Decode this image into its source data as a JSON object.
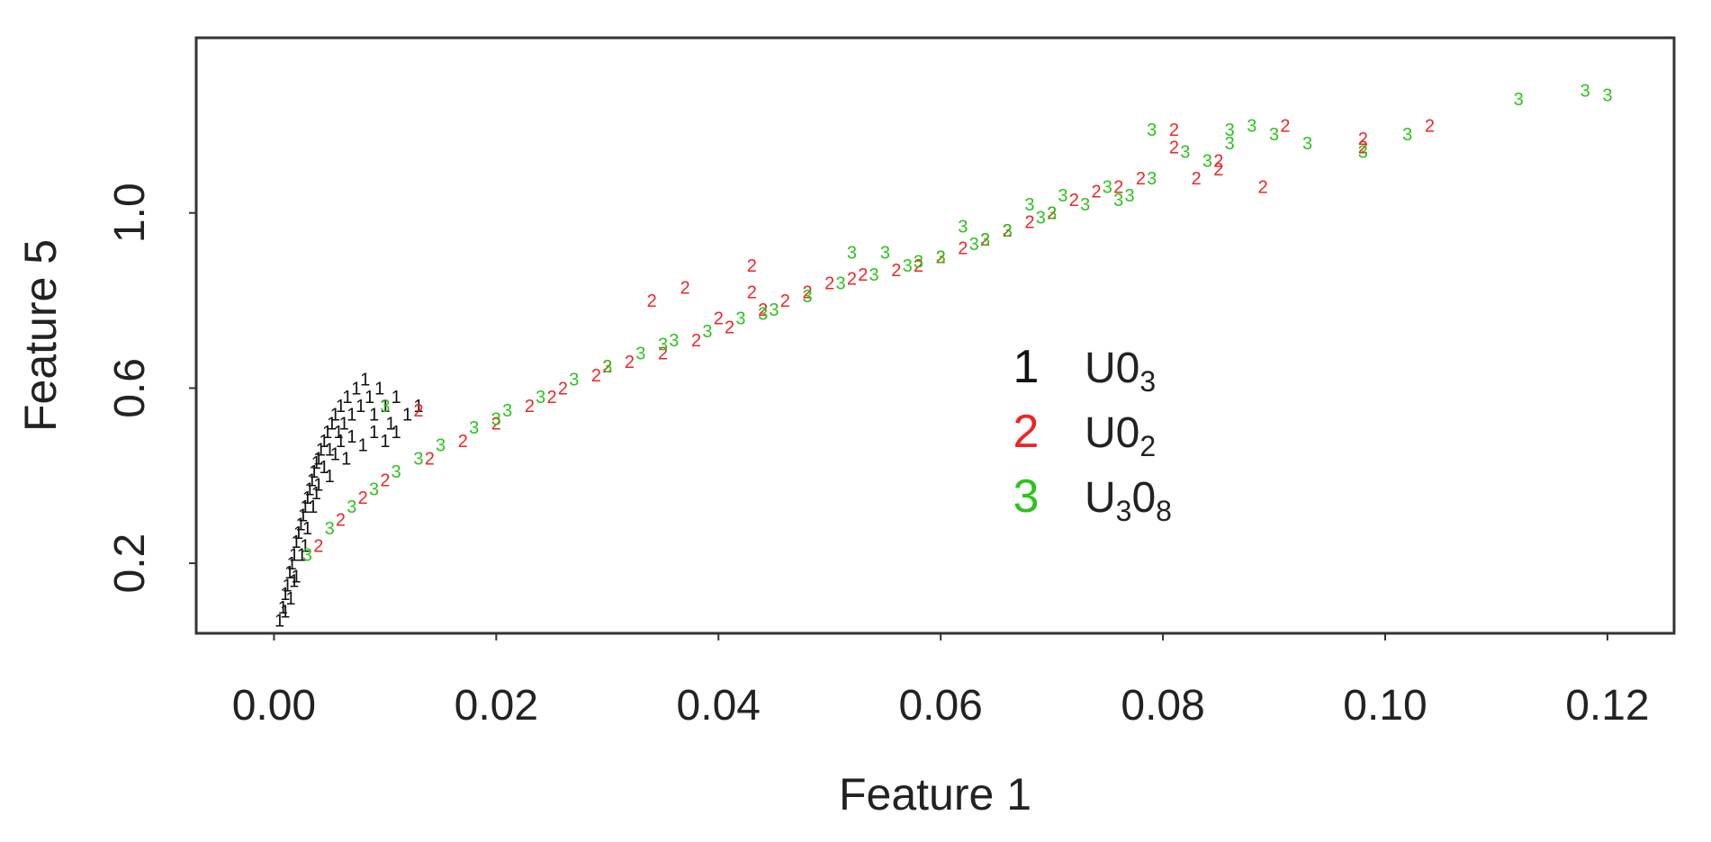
{
  "chart_data": {
    "type": "scatter",
    "xlabel": "Feature 1",
    "ylabel": "Feature 5",
    "xlim": [
      -0.007,
      0.126
    ],
    "ylim": [
      0.04,
      1.4
    ],
    "xticks": [
      "0.00",
      "0.02",
      "0.04",
      "0.06",
      "0.08",
      "0.10",
      "0.12"
    ],
    "xtick_values": [
      0.0,
      0.02,
      0.04,
      0.06,
      0.08,
      0.1,
      0.12
    ],
    "yticks": [
      "0.2",
      "0.6",
      "1.0"
    ],
    "ytick_values": [
      0.2,
      0.6,
      1.0
    ],
    "grid": false,
    "legend_position": "center-right",
    "series": [
      {
        "symbol": "1",
        "legend": {
          "main": "U0",
          "sub": "3",
          "suffix_main": "",
          "suffix_sub": ""
        },
        "color": "#111111",
        "points": [
          [
            0.0005,
            0.07
          ],
          [
            0.0008,
            0.1
          ],
          [
            0.001,
            0.13
          ],
          [
            0.0012,
            0.15
          ],
          [
            0.0014,
            0.18
          ],
          [
            0.0016,
            0.2
          ],
          [
            0.0018,
            0.22
          ],
          [
            0.002,
            0.25
          ],
          [
            0.0022,
            0.27
          ],
          [
            0.0024,
            0.29
          ],
          [
            0.0026,
            0.31
          ],
          [
            0.0028,
            0.33
          ],
          [
            0.003,
            0.35
          ],
          [
            0.0032,
            0.37
          ],
          [
            0.0034,
            0.39
          ],
          [
            0.0036,
            0.41
          ],
          [
            0.0038,
            0.43
          ],
          [
            0.004,
            0.44
          ],
          [
            0.0042,
            0.46
          ],
          [
            0.0045,
            0.48
          ],
          [
            0.0048,
            0.5
          ],
          [
            0.005,
            0.46
          ],
          [
            0.0052,
            0.52
          ],
          [
            0.0055,
            0.54
          ],
          [
            0.0058,
            0.5
          ],
          [
            0.006,
            0.56
          ],
          [
            0.0063,
            0.52
          ],
          [
            0.0066,
            0.58
          ],
          [
            0.007,
            0.54
          ],
          [
            0.0074,
            0.6
          ],
          [
            0.0078,
            0.56
          ],
          [
            0.0082,
            0.62
          ],
          [
            0.0086,
            0.58
          ],
          [
            0.009,
            0.54
          ],
          [
            0.0095,
            0.6
          ],
          [
            0.01,
            0.56
          ],
          [
            0.0105,
            0.52
          ],
          [
            0.011,
            0.58
          ],
          [
            0.012,
            0.54
          ],
          [
            0.013,
            0.56
          ],
          [
            0.0015,
            0.12
          ],
          [
            0.002,
            0.17
          ],
          [
            0.0025,
            0.22
          ],
          [
            0.003,
            0.28
          ],
          [
            0.0035,
            0.33
          ],
          [
            0.004,
            0.38
          ],
          [
            0.0045,
            0.42
          ],
          [
            0.005,
            0.4
          ],
          [
            0.0055,
            0.45
          ],
          [
            0.006,
            0.48
          ],
          [
            0.0065,
            0.44
          ],
          [
            0.007,
            0.49
          ],
          [
            0.008,
            0.47
          ],
          [
            0.009,
            0.5
          ],
          [
            0.01,
            0.48
          ],
          [
            0.011,
            0.5
          ],
          [
            0.001,
            0.09
          ],
          [
            0.0018,
            0.16
          ],
          [
            0.0028,
            0.24
          ],
          [
            0.0038,
            0.36
          ]
        ]
      },
      {
        "symbol": "2",
        "legend": {
          "main": "U0",
          "sub": "2",
          "suffix_main": "",
          "suffix_sub": ""
        },
        "color": "#f02424",
        "points": [
          [
            0.004,
            0.24
          ],
          [
            0.006,
            0.3
          ],
          [
            0.008,
            0.35
          ],
          [
            0.01,
            0.39
          ],
          [
            0.013,
            0.55
          ],
          [
            0.014,
            0.44
          ],
          [
            0.017,
            0.48
          ],
          [
            0.02,
            0.52
          ],
          [
            0.023,
            0.56
          ],
          [
            0.026,
            0.6
          ],
          [
            0.029,
            0.63
          ],
          [
            0.032,
            0.66
          ],
          [
            0.034,
            0.8
          ],
          [
            0.035,
            0.68
          ],
          [
            0.037,
            0.83
          ],
          [
            0.038,
            0.71
          ],
          [
            0.041,
            0.74
          ],
          [
            0.043,
            0.88
          ],
          [
            0.043,
            0.82
          ],
          [
            0.044,
            0.78
          ],
          [
            0.046,
            0.8
          ],
          [
            0.048,
            0.82
          ],
          [
            0.05,
            0.84
          ],
          [
            0.053,
            0.86
          ],
          [
            0.056,
            0.87
          ],
          [
            0.058,
            0.88
          ],
          [
            0.06,
            0.9
          ],
          [
            0.062,
            0.92
          ],
          [
            0.064,
            0.94
          ],
          [
            0.066,
            0.96
          ],
          [
            0.068,
            0.98
          ],
          [
            0.07,
            1.0
          ],
          [
            0.072,
            1.03
          ],
          [
            0.074,
            1.05
          ],
          [
            0.076,
            1.06
          ],
          [
            0.078,
            1.08
          ],
          [
            0.081,
            1.19
          ],
          [
            0.081,
            1.15
          ],
          [
            0.083,
            1.08
          ],
          [
            0.085,
            1.12
          ],
          [
            0.085,
            1.1
          ],
          [
            0.089,
            1.06
          ],
          [
            0.091,
            1.2
          ],
          [
            0.098,
            1.17
          ],
          [
            0.098,
            1.15
          ],
          [
            0.104,
            1.2
          ],
          [
            0.025,
            0.58
          ],
          [
            0.03,
            0.65
          ],
          [
            0.04,
            0.76
          ],
          [
            0.052,
            0.85
          ]
        ]
      },
      {
        "symbol": "3",
        "legend": {
          "main": "U",
          "sub": "3",
          "suffix_main": "0",
          "suffix_sub": "8"
        },
        "color": "#2cc41c",
        "points": [
          [
            0.003,
            0.22
          ],
          [
            0.005,
            0.28
          ],
          [
            0.007,
            0.33
          ],
          [
            0.009,
            0.37
          ],
          [
            0.011,
            0.41
          ],
          [
            0.013,
            0.44
          ],
          [
            0.015,
            0.47
          ],
          [
            0.018,
            0.51
          ],
          [
            0.021,
            0.55
          ],
          [
            0.024,
            0.58
          ],
          [
            0.027,
            0.62
          ],
          [
            0.03,
            0.65
          ],
          [
            0.033,
            0.68
          ],
          [
            0.036,
            0.71
          ],
          [
            0.039,
            0.73
          ],
          [
            0.042,
            0.76
          ],
          [
            0.045,
            0.78
          ],
          [
            0.048,
            0.81
          ],
          [
            0.051,
            0.84
          ],
          [
            0.052,
            0.91
          ],
          [
            0.054,
            0.86
          ],
          [
            0.055,
            0.91
          ],
          [
            0.057,
            0.88
          ],
          [
            0.06,
            0.9
          ],
          [
            0.062,
            0.97
          ],
          [
            0.063,
            0.93
          ],
          [
            0.066,
            0.96
          ],
          [
            0.068,
            1.02
          ],
          [
            0.069,
            0.99
          ],
          [
            0.071,
            1.04
          ],
          [
            0.073,
            1.02
          ],
          [
            0.075,
            1.06
          ],
          [
            0.077,
            1.04
          ],
          [
            0.079,
            1.19
          ],
          [
            0.079,
            1.08
          ],
          [
            0.082,
            1.14
          ],
          [
            0.084,
            1.12
          ],
          [
            0.086,
            1.16
          ],
          [
            0.086,
            1.19
          ],
          [
            0.088,
            1.2
          ],
          [
            0.09,
            1.18
          ],
          [
            0.093,
            1.16
          ],
          [
            0.098,
            1.14
          ],
          [
            0.102,
            1.18
          ],
          [
            0.112,
            1.26
          ],
          [
            0.118,
            1.28
          ],
          [
            0.12,
            1.27
          ],
          [
            0.01,
            0.56
          ],
          [
            0.02,
            0.53
          ],
          [
            0.035,
            0.7
          ],
          [
            0.044,
            0.77
          ],
          [
            0.058,
            0.89
          ],
          [
            0.064,
            0.94
          ],
          [
            0.07,
            1.0
          ],
          [
            0.076,
            1.03
          ]
        ]
      }
    ]
  }
}
